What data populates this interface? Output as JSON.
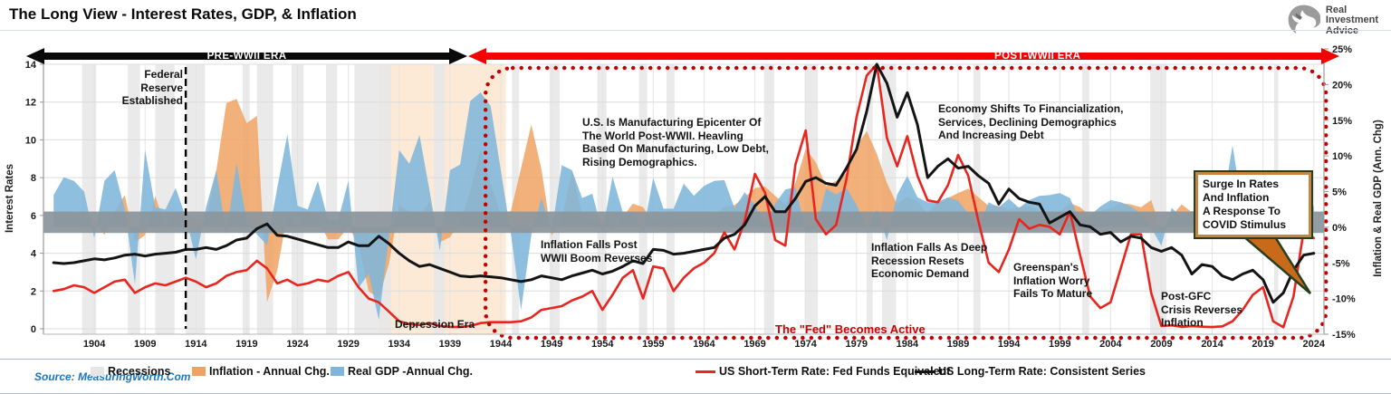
{
  "header": {
    "title": "The Long View - Interest Rates, GDP, & Inflation",
    "logo": {
      "line1": "Real",
      "line2": "Investment",
      "line3": "Advice"
    }
  },
  "eras": {
    "pre": "PRE-WWII ERA",
    "post": "POST-WWII ERA"
  },
  "axes": {
    "left_label": "Interest Rates",
    "right_label": "Inflation & Real GDP (Ann. Chg)",
    "left_ticks": [
      0,
      2,
      4,
      6,
      8,
      10,
      12,
      14
    ],
    "right_ticks": [
      "-15%",
      "-10%",
      "-5%",
      "0%",
      "5%",
      "10%",
      "15%",
      "20%",
      "25%"
    ],
    "x_ticks": [
      1904,
      1909,
      1914,
      1919,
      1924,
      1929,
      1934,
      1939,
      1944,
      1949,
      1954,
      1959,
      1964,
      1969,
      1974,
      1979,
      1984,
      1989,
      1994,
      1999,
      2004,
      2009,
      2014,
      2019,
      2024
    ]
  },
  "annotations": {
    "fed_established": {
      "text": "Federal\nReserve\nEstablished"
    },
    "mfg_epicenter": {
      "text": "U.S. Is Manufacturing Epicenter Of\nThe World Post-WWII. Heavling\nBased On Manufacturing, Low Debt,\nRising Demographics."
    },
    "inflation_falls_post": {
      "text": "Inflation Falls Post\nWWII Boom Reverses"
    },
    "economy_shifts": {
      "text": "Economy Shifts To Financialization,\nServices, Declining Demographics\nAnd Increasing Debt"
    },
    "inflation_deep_recession": {
      "text": "Inflation Falls As Deep\nRecession Resets\nEconomic Demand"
    },
    "greenspan": {
      "text": "Greenspan's\nInflation Worry\nFails To Mature"
    },
    "post_gfc": {
      "text": "Post-GFC\nCrisis Reverses\nInflation"
    },
    "depression_era": {
      "text": "Depression Era"
    },
    "fed_active": {
      "text": "The \"Fed\" Becomes Active"
    },
    "covid_surge": {
      "text": "Surge In Rates\nAnd Inflation\nA Response To\nCOVID Stimulus"
    }
  },
  "legend": [
    {
      "label": "Recessions",
      "type": "patch",
      "color": "#E6E6E6"
    },
    {
      "label": "Inflation - Annual Chg.",
      "type": "patch",
      "color": "#F0A263"
    },
    {
      "label": "Real GDP -Annual Chg.",
      "type": "patch",
      "color": "#7FB6DB"
    },
    {
      "label": "US Short-Term Rate: Fed Funds Equivalent",
      "type": "line",
      "color": "#E8261F"
    },
    {
      "label": "US Long-Term Rate: Consistent Series",
      "type": "line",
      "color": "#141414"
    }
  ],
  "source": "Source: MeasuringWorth.Com",
  "colors": {
    "pre_era_arrow": "#0a0a0a",
    "post_era_arrow": "#f40000",
    "dotted_box": "#c40000",
    "recession": "#e8e8e8",
    "depression": "#fadcbc",
    "zero_band": "#8c979d",
    "callout_tail": "#c96a1a",
    "callout_border": "#273f1e",
    "gridline": "#dcdcdc",
    "source_blue": "#1b75bb"
  },
  "chart_data": {
    "type": "area",
    "title": "The Long View - Interest Rates, GDP, & Inflation",
    "x_range": [
      1900,
      2024
    ],
    "left_axis": {
      "label": "Interest Rates",
      "range": [
        0,
        14
      ]
    },
    "right_axis": {
      "label": "Inflation & Real GDP (Ann. Chg)",
      "range": [
        -15,
        25
      ],
      "unit": "%"
    },
    "grid": true,
    "legend_position": "bottom",
    "zero_band": [
      2.2,
      -0.8
    ],
    "fed_established_year": 1913,
    "depression_band": [
      1932,
      1944.5
    ],
    "post_wwii_box": [
      1942.5,
      2025.2
    ],
    "recessions": [
      [
        1902.8,
        1904.2
      ],
      [
        1907.3,
        1908.5
      ],
      [
        1910.0,
        1911.9
      ],
      [
        1913.0,
        1914.9
      ],
      [
        1918.6,
        1919.3
      ],
      [
        1920.0,
        1921.6
      ],
      [
        1923.4,
        1924.6
      ],
      [
        1926.8,
        1927.9
      ],
      [
        1929.6,
        1933.2
      ],
      [
        1937.4,
        1938.5
      ],
      [
        1945.1,
        1945.8
      ],
      [
        1948.8,
        1949.8
      ],
      [
        1953.5,
        1954.4
      ],
      [
        1957.6,
        1958.4
      ],
      [
        1960.3,
        1961.1
      ],
      [
        1969.9,
        1970.9
      ],
      [
        1973.9,
        1975.2
      ],
      [
        1980.0,
        1980.6
      ],
      [
        1981.5,
        1982.9
      ],
      [
        1990.5,
        1991.2
      ],
      [
        2001.2,
        2001.9
      ],
      [
        2007.9,
        2009.5
      ],
      [
        2020.1,
        2020.5
      ]
    ],
    "series": [
      {
        "name": "Inflation - Annual Chg.",
        "type": "area",
        "axis": "right",
        "color": "#F0A263",
        "values": [
          1.2,
          1.2,
          1.2,
          2.3,
          1.1,
          -1.1,
          2.3,
          4.5,
          -2.1,
          -1.1,
          4.4,
          0.0,
          2.1,
          2.1,
          1.0,
          1.0,
          7.9,
          17.4,
          18.0,
          14.6,
          15.6,
          -10.5,
          -6.1,
          1.8,
          0.0,
          2.3,
          1.1,
          -1.7,
          -1.7,
          0.0,
          -2.3,
          -9.0,
          -9.9,
          -5.1,
          3.1,
          2.2,
          1.5,
          3.6,
          -2.1,
          -1.4,
          0.7,
          5.0,
          10.9,
          6.1,
          1.7,
          2.3,
          8.3,
          14.4,
          8.1,
          -1.2,
          1.3,
          7.9,
          1.9,
          0.8,
          0.7,
          -0.4,
          1.5,
          3.3,
          2.8,
          0.7,
          1.7,
          1.0,
          1.0,
          1.3,
          1.3,
          1.6,
          2.9,
          3.1,
          4.2,
          5.5,
          5.7,
          4.4,
          3.2,
          6.2,
          11.0,
          9.1,
          5.8,
          6.5,
          7.6,
          11.3,
          13.5,
          10.3,
          6.2,
          3.2,
          4.3,
          3.6,
          1.9,
          3.6,
          4.1,
          4.8,
          5.4,
          4.2,
          3.0,
          3.0,
          2.6,
          2.8,
          3.0,
          2.3,
          1.6,
          2.2,
          3.4,
          2.8,
          1.6,
          2.3,
          2.7,
          3.4,
          3.2,
          2.8,
          3.8,
          -0.4,
          1.6,
          3.2,
          2.1,
          1.5,
          1.6,
          0.1,
          1.3,
          2.1,
          2.4,
          1.8,
          1.2,
          4.7,
          8.0,
          4.1,
          3.0
        ]
      },
      {
        "name": "Real GDP -Annual Chg.",
        "type": "area",
        "axis": "right",
        "color": "#7FB6DB",
        "values": [
          4.5,
          7.0,
          6.5,
          5.0,
          -1.5,
          6.5,
          8.0,
          2.5,
          -8.0,
          10.8,
          2.8,
          2.5,
          5.5,
          1.5,
          -4.5,
          2.8,
          8.0,
          -1.0,
          9.0,
          0.8,
          -1.0,
          -2.5,
          5.5,
          13.0,
          3.0,
          2.5,
          6.5,
          1.0,
          1.0,
          6.5,
          -8.5,
          -6.5,
          -13.0,
          -1.2,
          10.8,
          8.9,
          12.9,
          5.1,
          -3.3,
          8.0,
          8.8,
          17.7,
          18.9,
          17.0,
          8.0,
          -1.0,
          -11.6,
          -1.1,
          4.1,
          -0.6,
          8.7,
          8.0,
          4.1,
          4.7,
          -0.6,
          7.1,
          2.1,
          2.1,
          -0.7,
          6.9,
          2.6,
          2.6,
          6.1,
          4.4,
          5.8,
          6.5,
          6.6,
          2.7,
          4.9,
          3.1,
          0.2,
          3.3,
          5.3,
          5.6,
          -0.5,
          -0.2,
          5.4,
          4.6,
          5.5,
          3.2,
          -0.3,
          2.5,
          -1.8,
          4.6,
          7.2,
          4.2,
          3.5,
          3.5,
          4.2,
          3.7,
          1.9,
          -0.1,
          3.5,
          2.8,
          4.0,
          2.7,
          3.8,
          4.4,
          4.5,
          4.8,
          4.1,
          1.0,
          1.7,
          2.9,
          3.8,
          3.5,
          2.9,
          1.9,
          -0.1,
          -2.6,
          2.7,
          1.5,
          2.3,
          1.8,
          2.3,
          2.7,
          11.5,
          2.3,
          2.9,
          2.3,
          -2.8,
          5.9,
          1.9,
          2.5,
          2.8
        ]
      },
      {
        "name": "US Short-Term Rate: Fed Funds Equivalent",
        "type": "line",
        "axis": "left",
        "color": "#E8261F",
        "values": [
          2.0,
          2.1,
          2.3,
          2.2,
          1.9,
          2.2,
          2.5,
          2.6,
          1.9,
          2.2,
          2.4,
          2.3,
          2.5,
          2.7,
          2.5,
          2.2,
          2.4,
          2.8,
          3.0,
          3.1,
          3.6,
          3.2,
          2.4,
          2.6,
          2.3,
          2.4,
          2.6,
          2.5,
          2.8,
          3.0,
          2.2,
          1.6,
          1.4,
          0.9,
          0.4,
          0.25,
          0.2,
          0.3,
          0.15,
          0.1,
          0.1,
          0.15,
          0.3,
          0.35,
          0.35,
          0.35,
          0.4,
          0.6,
          1.0,
          1.1,
          1.2,
          1.5,
          1.7,
          2.0,
          1.0,
          1.8,
          2.7,
          3.1,
          1.6,
          3.3,
          3.2,
          2.0,
          2.7,
          3.2,
          3.5,
          4.0,
          5.1,
          4.2,
          5.7,
          8.2,
          7.2,
          4.7,
          4.4,
          8.7,
          10.5,
          5.8,
          5.0,
          5.5,
          7.9,
          11.2,
          13.4,
          14.0,
          10.1,
          8.6,
          10.2,
          8.1,
          6.8,
          6.7,
          7.6,
          9.2,
          8.1,
          5.7,
          3.5,
          3.0,
          4.2,
          5.8,
          5.3,
          5.5,
          5.4,
          5.0,
          6.2,
          3.9,
          1.7,
          1.1,
          1.4,
          3.2,
          5.0,
          5.0,
          1.9,
          0.15,
          0.18,
          0.1,
          0.14,
          0.11,
          0.09,
          0.13,
          0.4,
          1.0,
          1.8,
          2.2,
          0.4,
          0.08,
          1.7,
          5.2,
          4.8
        ]
      },
      {
        "name": "US Long-Term Rate: Consistent Series",
        "type": "line",
        "axis": "left",
        "color": "#141414",
        "values": [
          3.5,
          3.45,
          3.5,
          3.6,
          3.7,
          3.65,
          3.75,
          3.9,
          3.95,
          3.85,
          3.95,
          4.0,
          4.05,
          4.2,
          4.2,
          4.3,
          4.2,
          4.4,
          4.7,
          4.8,
          5.3,
          5.55,
          4.95,
          4.9,
          4.75,
          4.6,
          4.45,
          4.3,
          4.3,
          4.6,
          4.4,
          4.4,
          4.9,
          4.5,
          4.0,
          3.6,
          3.3,
          3.4,
          3.2,
          3.0,
          2.8,
          2.75,
          2.8,
          2.75,
          2.7,
          2.6,
          2.5,
          2.6,
          2.8,
          2.7,
          2.6,
          2.8,
          2.95,
          3.1,
          2.9,
          3.05,
          3.3,
          3.6,
          3.45,
          4.2,
          4.15,
          3.95,
          4.0,
          4.1,
          4.2,
          4.3,
          4.8,
          5.0,
          5.5,
          6.5,
          7.0,
          6.2,
          6.2,
          6.9,
          7.8,
          8.0,
          7.7,
          7.6,
          8.5,
          9.5,
          11.5,
          14.0,
          13.0,
          11.2,
          12.5,
          10.8,
          8.0,
          8.6,
          9.0,
          8.5,
          8.6,
          8.1,
          7.7,
          6.6,
          7.4,
          6.9,
          6.7,
          6.6,
          5.6,
          5.9,
          6.2,
          5.5,
          5.4,
          5.0,
          5.1,
          4.6,
          4.9,
          4.8,
          4.3,
          4.1,
          4.3,
          3.9,
          2.9,
          3.4,
          3.3,
          2.8,
          2.6,
          2.9,
          3.1,
          2.6,
          1.4,
          1.9,
          3.1,
          3.9,
          4.0
        ]
      }
    ]
  }
}
